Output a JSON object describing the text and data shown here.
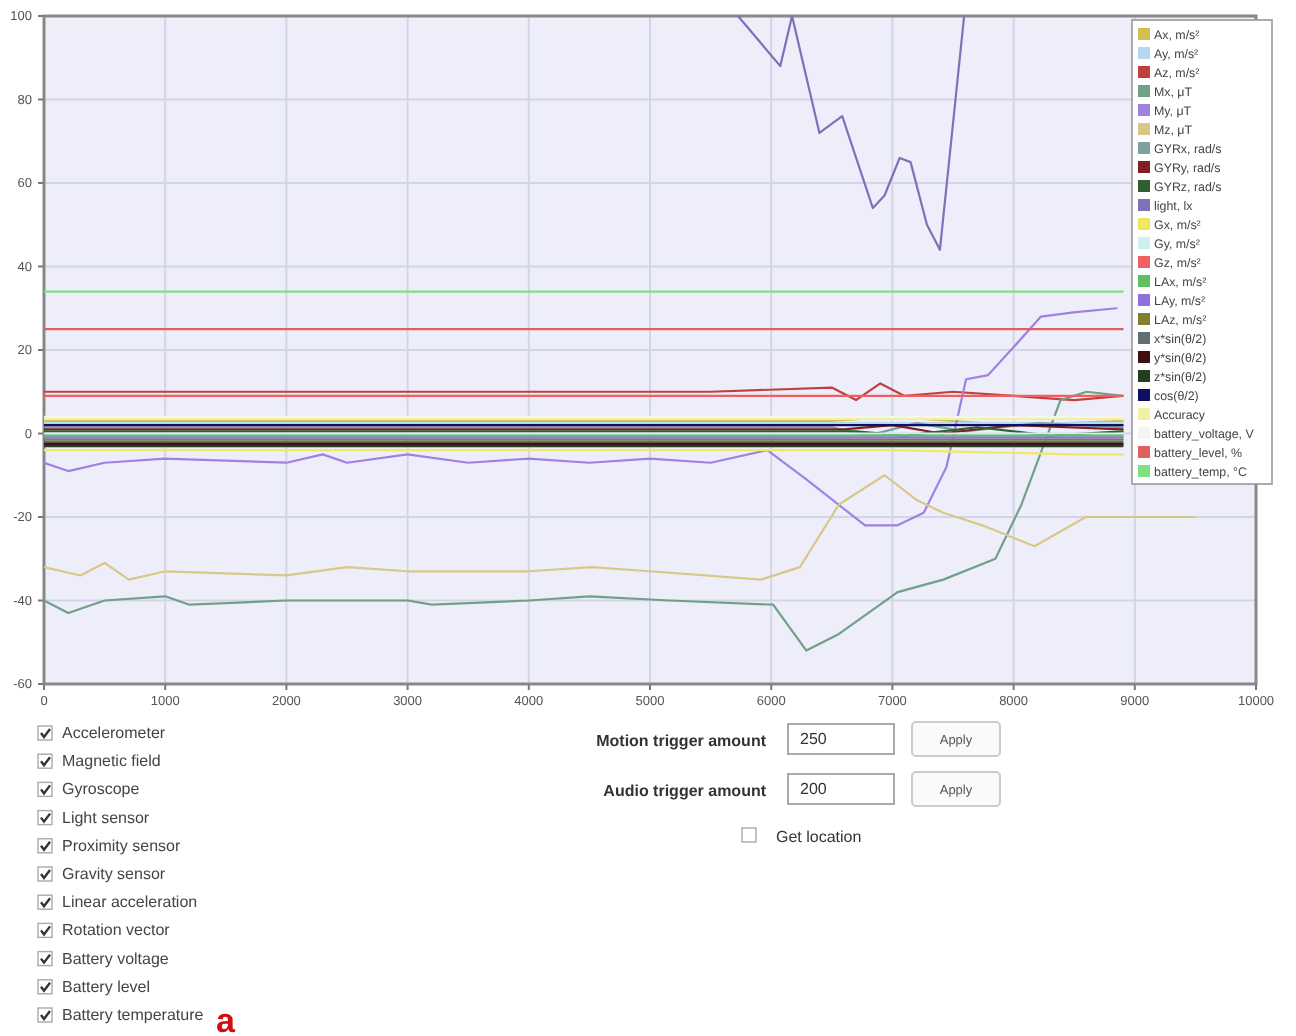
{
  "chart_data": {
    "type": "line",
    "xlim": [
      0,
      10000
    ],
    "xticks": [
      0,
      1000,
      2000,
      3000,
      4000,
      5000,
      6000,
      7000,
      8000,
      9000,
      10000
    ],
    "ylim": [
      -60,
      100
    ],
    "yticks": [
      -60,
      -40,
      -20,
      0,
      20,
      40,
      60,
      80,
      100
    ],
    "grid": true,
    "legend": "top right",
    "marker": "none",
    "line_style": "solid",
    "series": [
      {
        "name": "Ax, m/s²",
        "color": "#d4c050",
        "x": [
          0,
          6500,
          7000,
          7500,
          8000,
          8900
        ],
        "values": [
          3,
          3,
          4,
          3,
          2,
          3
        ]
      },
      {
        "name": "Ay, m/s²",
        "color": "#b8d8f0",
        "x": [
          0,
          8900
        ],
        "values": [
          2.5,
          2.5
        ]
      },
      {
        "name": "Az, m/s²",
        "color": "#c04040",
        "x": [
          0,
          5500,
          6500,
          6700,
          6900,
          7100,
          7500,
          8000,
          8500,
          8900
        ],
        "values": [
          10,
          10,
          11,
          8,
          12,
          9,
          10,
          9,
          8,
          9
        ]
      },
      {
        "name": "Mx, μT",
        "color": "#70a088",
        "x": [
          0,
          200,
          500,
          1000,
          1200,
          2000,
          3000,
          3200,
          4000,
          4500,
          5161,
          6016,
          6290,
          6559,
          7043,
          7420,
          7850,
          8065,
          8387,
          8602,
          8900
        ],
        "values": [
          -40,
          -43,
          -40,
          -39,
          -41,
          -40,
          -40,
          -41,
          -40,
          -39,
          -40,
          -41,
          -52,
          -48,
          -38,
          -35,
          -30,
          -17,
          8,
          10,
          9
        ]
      },
      {
        "name": "My, μT",
        "color": "#a080e0",
        "x": [
          0,
          200,
          500,
          1000,
          2000,
          2300,
          2500,
          3000,
          3500,
          4000,
          4500,
          5000,
          5500,
          5968,
          6290,
          6774,
          7043,
          7258,
          7446,
          7608,
          7790,
          8010,
          8226,
          8495,
          8850
        ],
        "values": [
          -7,
          -9,
          -7,
          -6,
          -7,
          -5,
          -7,
          -5,
          -7,
          -6,
          -7,
          -6,
          -7,
          -4,
          -11,
          -22,
          -22,
          -19,
          -8,
          13,
          14,
          21,
          28,
          29,
          30
        ]
      },
      {
        "name": "Mz, μT",
        "color": "#d8c888",
        "x": [
          0,
          300,
          500,
          700,
          1000,
          2000,
          2500,
          3000,
          4000,
          4516,
          5000,
          5914,
          6237,
          6559,
          6935,
          7204,
          7420,
          7742,
          8172,
          8597,
          9032,
          9500
        ],
        "values": [
          -32,
          -34,
          -31,
          -35,
          -33,
          -34,
          -32,
          -33,
          -33,
          -32,
          -33,
          -35,
          -32,
          -17,
          -10,
          -16,
          -19,
          -22,
          -27,
          -20,
          -20,
          -20
        ]
      },
      {
        "name": "GYRx, rad/s",
        "color": "#80a0a0",
        "x": [
          0,
          6500,
          6800,
          7200,
          7600,
          8200,
          8900
        ],
        "values": [
          1.5,
          1.5,
          -0.5,
          2.5,
          0.5,
          2.5,
          1.5
        ]
      },
      {
        "name": "GYRy, rad/s",
        "color": "#802020",
        "x": [
          0,
          6600,
          7000,
          7400,
          8000,
          8900
        ],
        "values": [
          1,
          1,
          2,
          0,
          2,
          1
        ]
      },
      {
        "name": "GYRz, rad/s",
        "color": "#306030",
        "x": [
          0,
          6700,
          7100,
          7700,
          8300,
          8900
        ],
        "values": [
          0.5,
          0.5,
          -0.5,
          1.5,
          -0.5,
          0.5
        ]
      },
      {
        "name": "light, lx",
        "color": "#8070b8",
        "x": [
          5726,
          6075,
          6172,
          6398,
          6586,
          6839,
          6935,
          7060,
          7150,
          7285,
          7392,
          7592
        ],
        "values": [
          100,
          88,
          100,
          72,
          76,
          54,
          57,
          66,
          65,
          50,
          44,
          100
        ]
      },
      {
        "name": "Gx, m/s²",
        "color": "#f0e860",
        "x": [
          0,
          7000,
          7800,
          8500,
          8900
        ],
        "values": [
          -4,
          -4,
          -4.5,
          -5,
          -5
        ]
      },
      {
        "name": "Gy, m/s²",
        "color": "#d0f0f0",
        "x": [
          0,
          8900
        ],
        "values": [
          0,
          0
        ]
      },
      {
        "name": "Gz, m/s²",
        "color": "#f06060",
        "x": [
          0,
          8900
        ],
        "values": [
          9,
          9
        ]
      },
      {
        "name": "LAx, m/s²",
        "color": "#60c060",
        "x": [
          0,
          8900
        ],
        "values": [
          -0.5,
          -0.5
        ]
      },
      {
        "name": "LAy, m/s²",
        "color": "#9070e0",
        "x": [
          0,
          8900
        ],
        "values": [
          -1,
          -1
        ]
      },
      {
        "name": "LAz, m/s²",
        "color": "#808030",
        "x": [
          0,
          8900
        ],
        "values": [
          -1.5,
          -1.5
        ]
      },
      {
        "name": "x*sin(θ/2)",
        "color": "#607070",
        "x": [
          0,
          8900
        ],
        "values": [
          -2,
          -2
        ]
      },
      {
        "name": "y*sin(θ/2)",
        "color": "#401010",
        "x": [
          0,
          8900
        ],
        "values": [
          -2.5,
          -2.5
        ]
      },
      {
        "name": "z*sin(θ/2)",
        "color": "#204020",
        "x": [
          0,
          8900
        ],
        "values": [
          -3,
          -3
        ]
      },
      {
        "name": "cos(θ/2)",
        "color": "#101060",
        "x": [
          0,
          8900
        ],
        "values": [
          2,
          2
        ]
      },
      {
        "name": "Accuracy",
        "color": "#f0f0a0",
        "x": [
          0,
          8900
        ],
        "values": [
          3.5,
          3.5
        ]
      },
      {
        "name": "battery_voltage, V",
        "color": "#f4f4f4",
        "x": [
          0,
          8900
        ],
        "values": [
          4,
          4
        ]
      },
      {
        "name": "battery_level, %",
        "color": "#e06060",
        "x": [
          0,
          8900
        ],
        "values": [
          25,
          25
        ]
      },
      {
        "name": "battery_temp, °C",
        "color": "#80e080",
        "x": [
          0,
          8900
        ],
        "values": [
          34,
          34
        ]
      }
    ],
    "annotations": [
      "Accelerometer",
      "Magnetic field",
      "Gyroscope",
      "Light sensor",
      "Proximity sensor",
      "Gravity sensor",
      "Linear acceleration",
      "Rotation vector",
      "Battery voltage",
      "Battery level",
      "Battery temperature",
      "Motion trigger amount",
      "250",
      "Apply",
      "Audio trigger amount",
      "200",
      "Apply",
      "Get location",
      "a"
    ]
  }
}
